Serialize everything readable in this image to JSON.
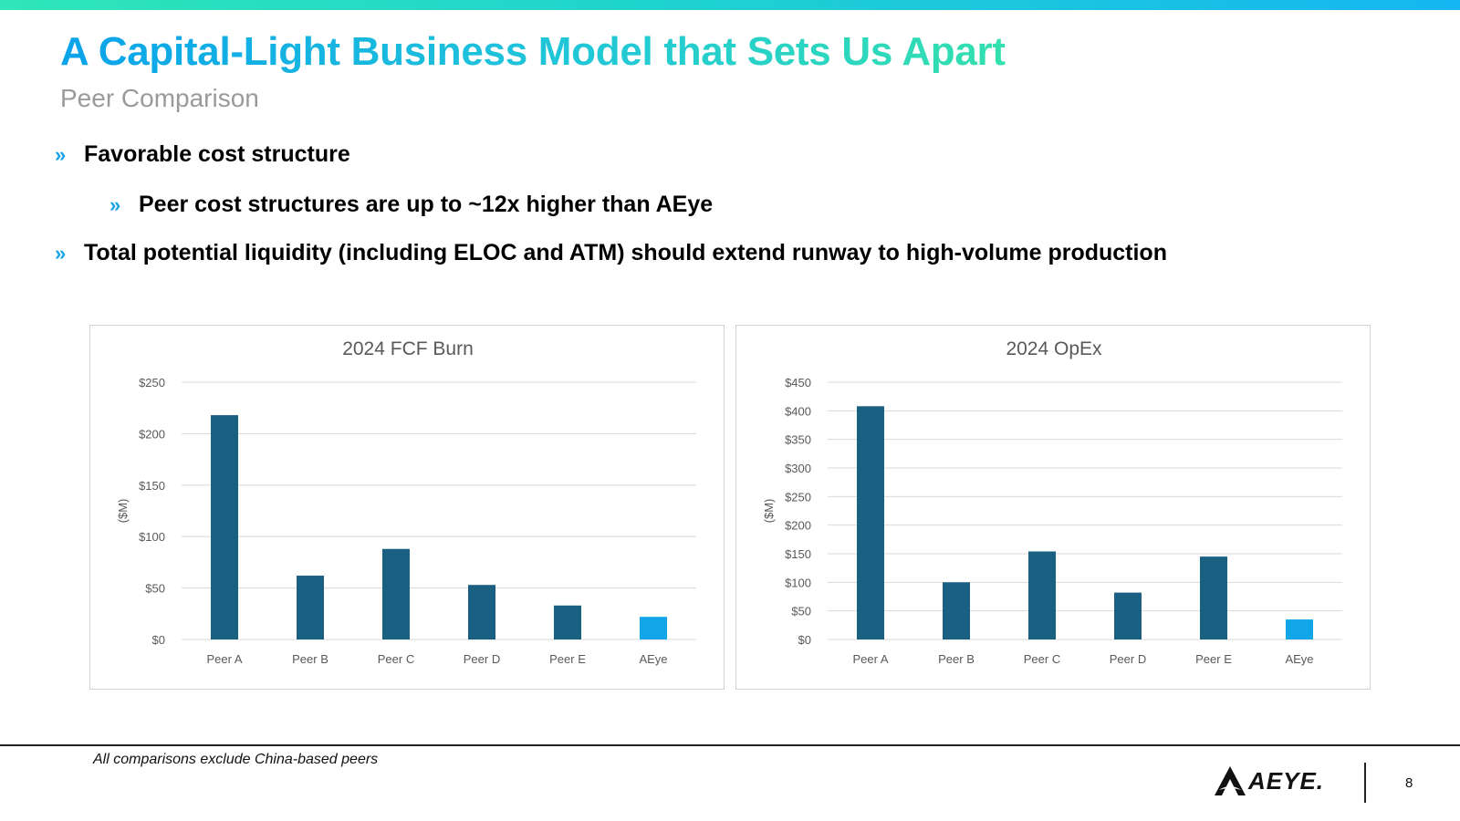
{
  "slide": {
    "title": "A Capital-Light Business Model that Sets Us Apart",
    "subtitle": "Peer Comparison",
    "accent_color": "#1aa3e8",
    "bullet_glyph": "»",
    "bullets": [
      "Favorable cost structure",
      "Peer cost structures are up to ~12x higher than AEye",
      "Total potential liquidity (including ELOC and ATM) should extend runway to high-volume production"
    ],
    "footnote": "All comparisons exclude China-based peers",
    "logo_text": "AEYE.",
    "page_number": "8"
  },
  "chart_data": [
    {
      "type": "bar",
      "title": "2024 FCF Burn",
      "xlabel": "",
      "ylabel": "($M)",
      "categories": [
        "Peer A",
        "Peer B",
        "Peer C",
        "Peer D",
        "Peer E",
        "AEye"
      ],
      "values": [
        218,
        62,
        88,
        53,
        33,
        22
      ],
      "ylim": [
        0,
        250
      ],
      "tick_step": 50,
      "tick_prefix": "$",
      "grid": true,
      "bar_color": "#1a6083",
      "highlight_color": "#12a6e8",
      "highlight_category": "AEye"
    },
    {
      "type": "bar",
      "title": "2024 OpEx",
      "xlabel": "",
      "ylabel": "($M)",
      "categories": [
        "Peer A",
        "Peer B",
        "Peer C",
        "Peer D",
        "Peer E",
        "AEye"
      ],
      "values": [
        408,
        100,
        154,
        82,
        145,
        35
      ],
      "ylim": [
        0,
        450
      ],
      "tick_step": 50,
      "tick_prefix": "$",
      "grid": true,
      "bar_color": "#1a6083",
      "highlight_color": "#12a6e8",
      "highlight_category": "AEye"
    }
  ]
}
